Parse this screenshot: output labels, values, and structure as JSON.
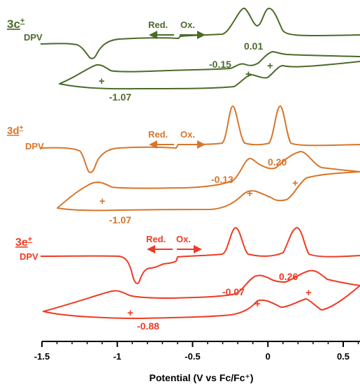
{
  "chart_data": {
    "type": "line",
    "xlabel": "Potential (V vs Fc/Fc⁺)",
    "xlim": [
      -1.5,
      0.6
    ],
    "xticks": [
      -1.5,
      -1,
      -0.5,
      0,
      0.5
    ],
    "xtick_labels": [
      "-1.5",
      "-1",
      "-0.5",
      "0",
      "0.5"
    ],
    "grid": false,
    "panels": [
      {
        "id": "3c",
        "compound": "3c",
        "charge": "+",
        "color": "#4a6b2a",
        "dpv_label": "DPV",
        "scan_labels": {
          "reduction": "Red.",
          "oxidation": "Ox."
        },
        "dpv_peaks_x": [
          -1.07,
          -0.14,
          0.01
        ],
        "cv_half_wave_potentials": [
          -1.07,
          -0.15,
          0.01
        ],
        "value_labels": [
          "0.01",
          "-0.15",
          "-1.07"
        ]
      },
      {
        "id": "3d",
        "compound": "3d",
        "charge": "+",
        "color": "#d6762c",
        "dpv_label": "DPV",
        "scan_labels": {
          "reduction": "Red.",
          "oxidation": "Ox."
        },
        "dpv_peaks_x": [
          -1.06,
          -0.12,
          0.19
        ],
        "cv_half_wave_potentials": [
          -1.07,
          -0.13,
          0.2
        ],
        "value_labels": [
          "0.20",
          "-0.13",
          "-1.07"
        ]
      },
      {
        "id": "3e",
        "compound": "3e",
        "charge": "+",
        "color": "#ef3b24",
        "dpv_label": "DPV",
        "scan_labels": {
          "reduction": "Red.",
          "oxidation": "Ox."
        },
        "dpv_peaks_x": [
          -0.88,
          -0.07,
          0.26
        ],
        "cv_half_wave_potentials": [
          -0.88,
          -0.07,
          0.26
        ],
        "value_labels": [
          "0.26",
          "-0.07",
          "-0.88"
        ]
      }
    ]
  }
}
